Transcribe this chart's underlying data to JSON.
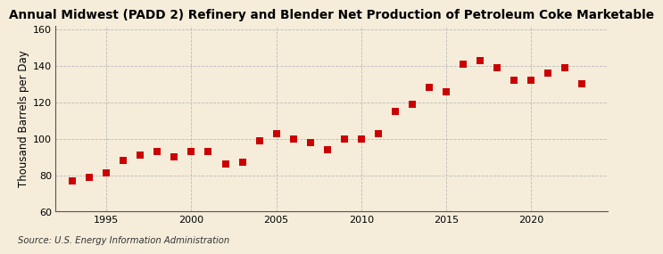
{
  "title": "Annual Midwest (PADD 2) Refinery and Blender Net Production of Petroleum Coke Marketable",
  "ylabel": "Thousand Barrels per Day",
  "source": "Source: U.S. Energy Information Administration",
  "background_color": "#f5edda",
  "years": [
    1993,
    1994,
    1995,
    1996,
    1997,
    1998,
    1999,
    2000,
    2001,
    2002,
    2003,
    2004,
    2005,
    2006,
    2007,
    2008,
    2009,
    2010,
    2011,
    2012,
    2013,
    2014,
    2015,
    2016,
    2017,
    2018,
    2019,
    2020,
    2021,
    2022,
    2023
  ],
  "values": [
    77,
    79,
    81,
    88,
    91,
    93,
    90,
    93,
    93,
    86,
    87,
    99,
    103,
    100,
    98,
    94,
    100,
    100,
    103,
    115,
    119,
    128,
    126,
    141,
    143,
    139,
    132,
    132,
    136,
    139,
    130
  ],
  "marker_color": "#cc0000",
  "marker_size": 28,
  "ylim": [
    60,
    162
  ],
  "yticks": [
    60,
    80,
    100,
    120,
    140,
    160
  ],
  "xlim": [
    1992.0,
    2024.5
  ],
  "xticks": [
    1995,
    2000,
    2005,
    2010,
    2015,
    2020
  ],
  "grid_color": "#bbbbbb",
  "title_fontsize": 9.8,
  "ylabel_fontsize": 8.5,
  "tick_fontsize": 8,
  "source_fontsize": 7.2
}
